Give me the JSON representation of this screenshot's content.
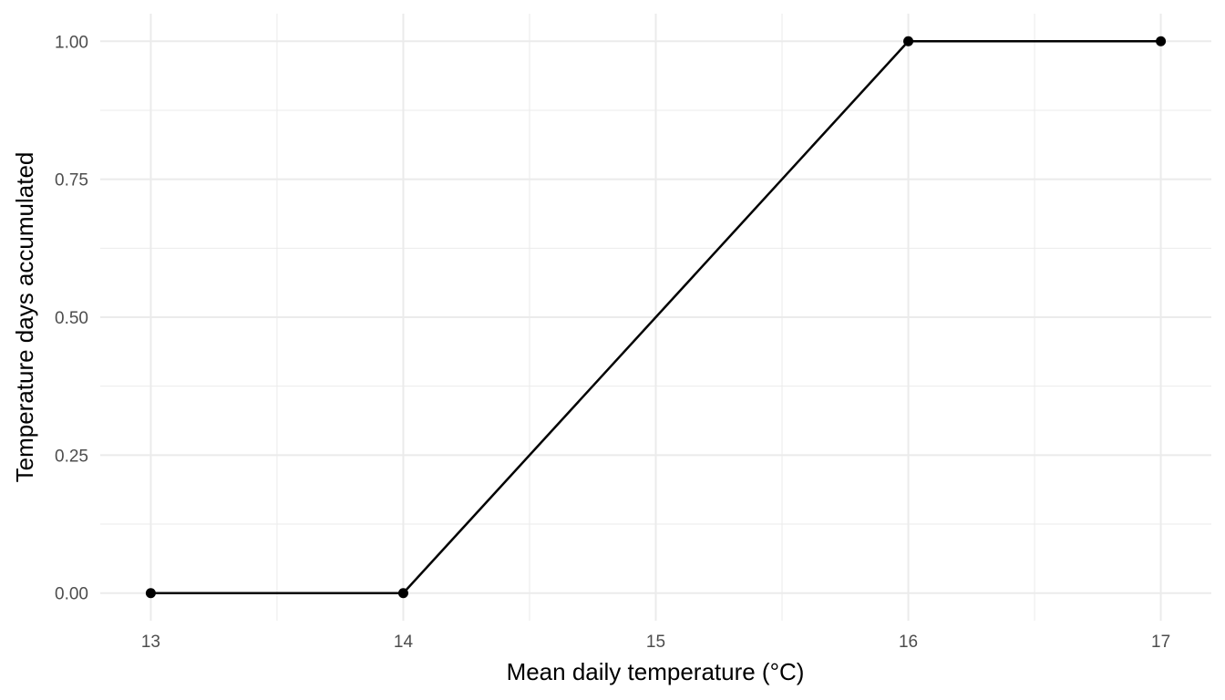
{
  "chart_data": {
    "type": "line",
    "title": "",
    "xlabel": "Mean daily temperature (°C)",
    "ylabel": "Temperature days accumulated",
    "x": [
      13,
      14,
      16,
      17
    ],
    "series": [
      {
        "values": [
          0.0,
          0.0,
          1.0,
          1.0
        ]
      }
    ],
    "xlim": [
      12.8,
      17.2
    ],
    "ylim": [
      -0.05,
      1.05
    ],
    "x_ticks": [
      13,
      14,
      15,
      16,
      17
    ],
    "x_tick_labels": [
      "13",
      "14",
      "15",
      "16",
      "17"
    ],
    "y_ticks": [
      0,
      0.25,
      0.5,
      0.75,
      1.0
    ],
    "y_tick_labels": [
      "0.00",
      "0.25",
      "0.50",
      "0.75",
      "1.00"
    ],
    "grid": true,
    "legend": "none",
    "colors": {
      "line": "#000000",
      "grid": "#ebebeb",
      "tick_text": "#4d4d4d"
    }
  }
}
